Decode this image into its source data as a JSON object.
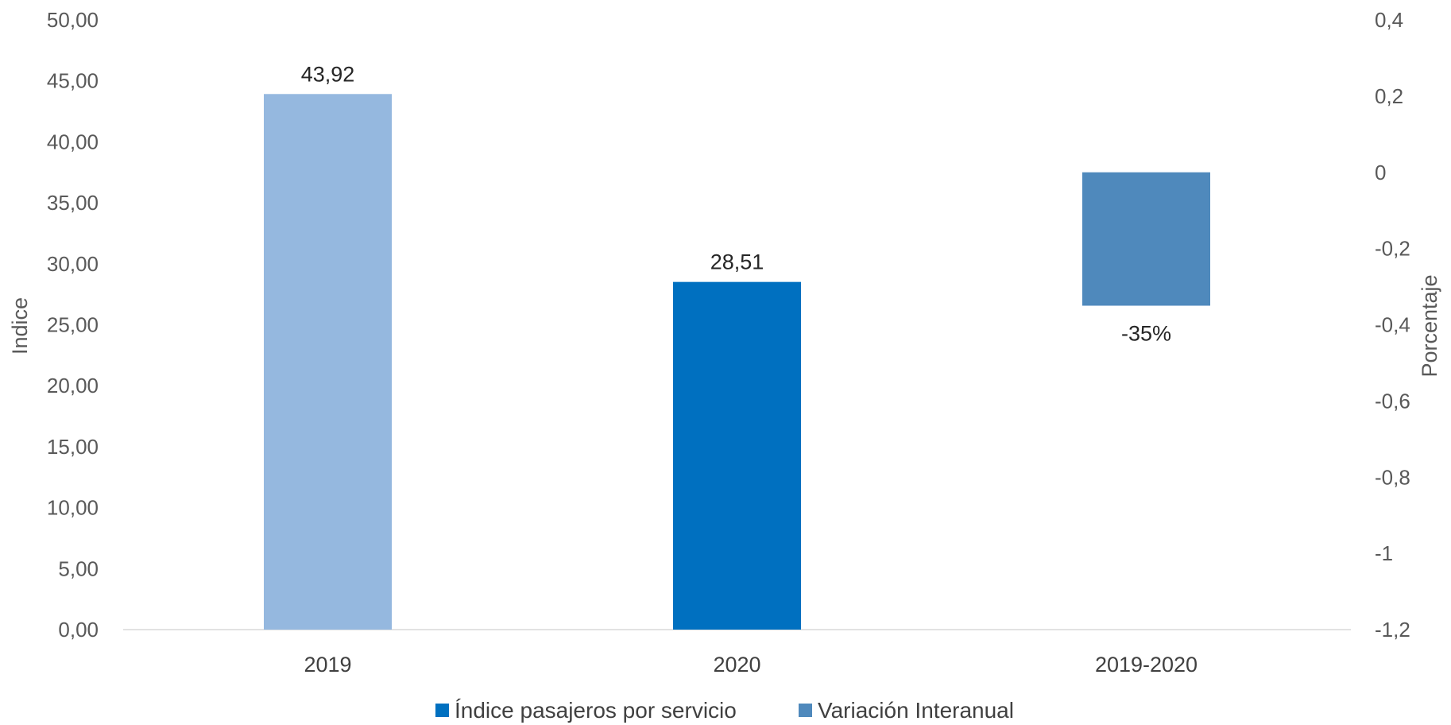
{
  "chart_data": {
    "type": "bar",
    "categories": [
      "2019",
      "2020",
      "2019-2020"
    ],
    "series": [
      {
        "name": "Índice pasajeros por servicio",
        "axis": "left",
        "values": [
          43.92,
          28.51,
          null
        ],
        "data_labels": [
          "43,92",
          "28,51",
          ""
        ],
        "colors": [
          "#95b8df",
          "#0070c0",
          null
        ],
        "legend_color": "#0070c0"
      },
      {
        "name": "Variación Interanual",
        "axis": "right",
        "values": [
          null,
          null,
          -0.35
        ],
        "data_labels": [
          "",
          "",
          "-35%"
        ],
        "colors": [
          null,
          null,
          "#4f89bc"
        ],
        "legend_color": "#4f89bc"
      }
    ],
    "ylabel": "Indice",
    "ylabel_right": "Porcentaje",
    "ylim": [
      0,
      50
    ],
    "ylim_right": [
      -1.2,
      0.4
    ],
    "yticks": [
      "0,00",
      "5,00",
      "10,00",
      "15,00",
      "20,00",
      "25,00",
      "30,00",
      "35,00",
      "40,00",
      "45,00",
      "50,00"
    ],
    "yticks_right": [
      "-1,2",
      "-1",
      "-0,8",
      "-0,6",
      "-0,4",
      "-0,2",
      "0",
      "0,2",
      "0,4"
    ],
    "grid": false,
    "legend_position": "bottom"
  }
}
